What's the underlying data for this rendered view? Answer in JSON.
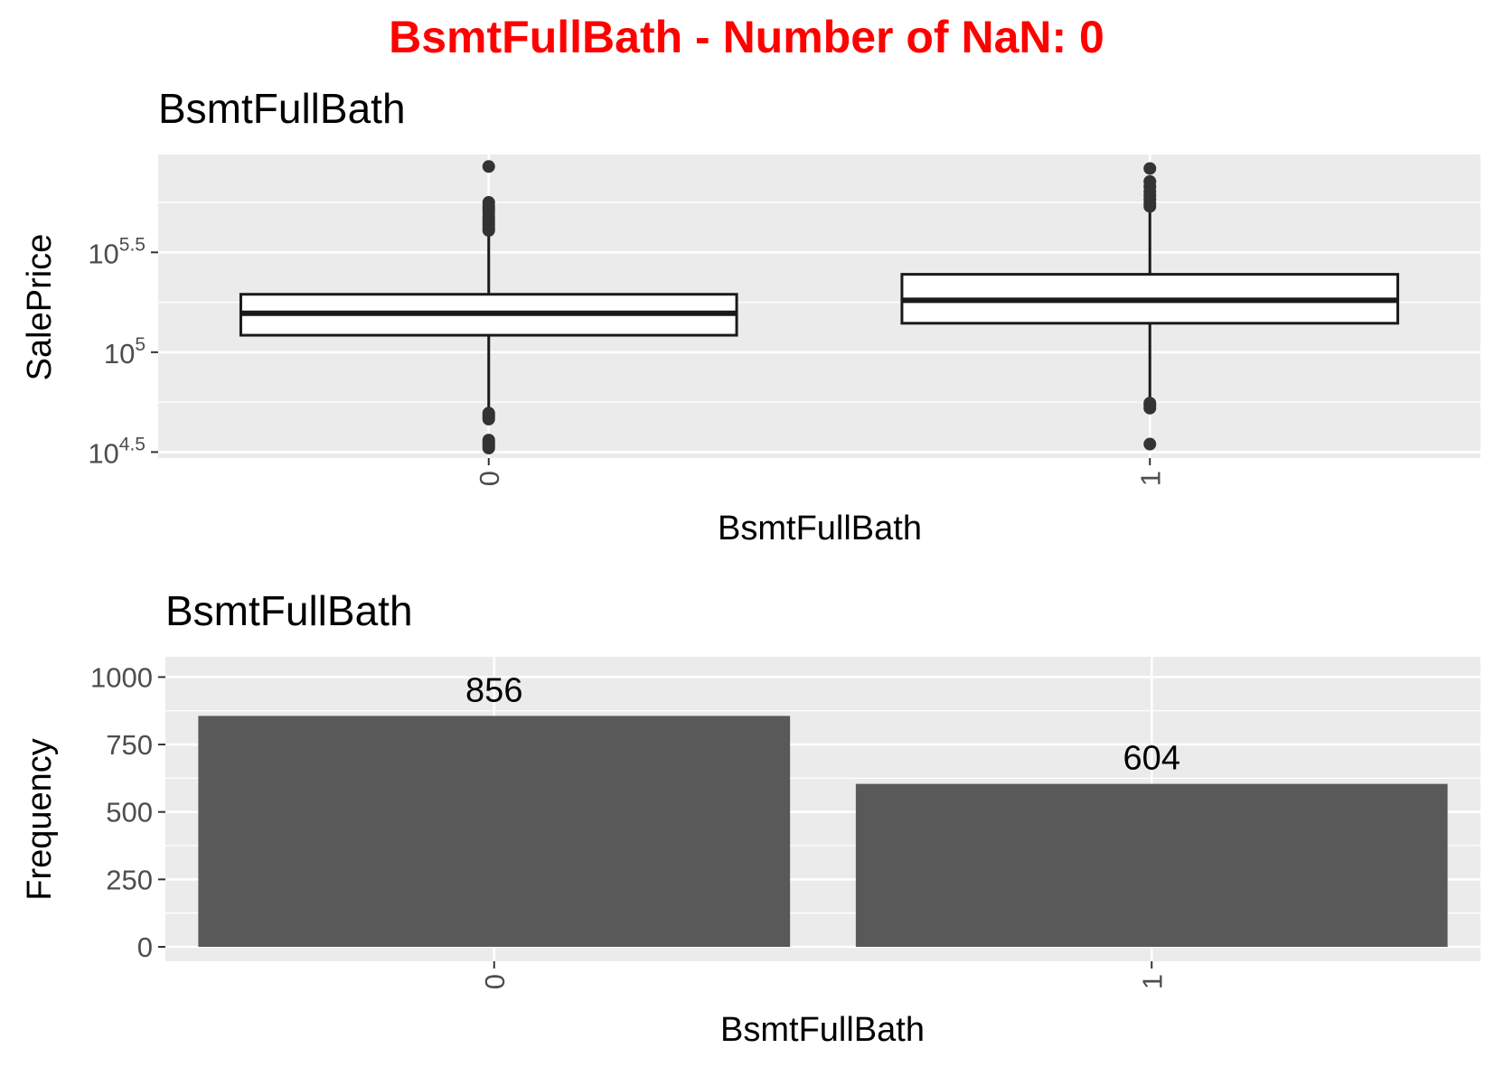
{
  "main_title": "BsmtFullBath - Number of NaN: 0",
  "colors": {
    "main_title": "#ff0000",
    "panel_bg": "#ebebeb",
    "grid": "#ffffff",
    "bar_fill": "#595959",
    "box_stroke": "#1a1a1a",
    "tick_text": "#4d4d4d"
  },
  "chart_data": [
    {
      "type": "boxplot",
      "title": "BsmtFullBath",
      "xlabel": "BsmtFullBath",
      "ylabel": "SalePrice",
      "y_scale": "log10",
      "ylim_log10": [
        4.47,
        5.99
      ],
      "categories": [
        "0",
        "1"
      ],
      "y_ticks": [
        {
          "base": "10",
          "exp": "4.5",
          "value_log10": 4.5
        },
        {
          "base": "10",
          "exp": "5",
          "value_log10": 5.0
        },
        {
          "base": "10",
          "exp": "5.5",
          "value_log10": 5.5
        }
      ],
      "minor_grid_log10": [
        4.75,
        5.25,
        5.75
      ],
      "boxes": [
        {
          "category": "0",
          "whisker_low": 4.66,
          "q1": 5.085,
          "median": 5.195,
          "q3": 5.29,
          "whisker_high": 5.6,
          "outliers": [
            4.52,
            4.53,
            4.54,
            4.55,
            4.56,
            4.665,
            4.675,
            4.685,
            4.695,
            5.61,
            5.62,
            5.635,
            5.65,
            5.665,
            5.68,
            5.7,
            5.715,
            5.73,
            5.75,
            5.93
          ]
        },
        {
          "category": "1",
          "whisker_low": 4.705,
          "q1": 5.145,
          "median": 5.26,
          "q3": 5.39,
          "whisker_high": 5.725,
          "outliers": [
            4.54,
            4.72,
            4.735,
            4.745,
            5.73,
            5.745,
            5.765,
            5.785,
            5.805,
            5.83,
            5.855,
            5.92
          ]
        }
      ]
    },
    {
      "type": "bar",
      "title": "BsmtFullBath",
      "xlabel": "BsmtFullBath",
      "ylabel": "Frequency",
      "categories": [
        "0",
        "1"
      ],
      "values": [
        856,
        604
      ],
      "data_labels": [
        "856",
        "604"
      ],
      "ylim": [
        0,
        1075
      ],
      "y_ticks": [
        {
          "label": "0",
          "value": 0
        },
        {
          "label": "250",
          "value": 250
        },
        {
          "label": "500",
          "value": 500
        },
        {
          "label": "750",
          "value": 750
        },
        {
          "label": "1000",
          "value": 1000
        }
      ],
      "minor_grid": [
        125,
        375,
        625,
        875
      ]
    }
  ]
}
